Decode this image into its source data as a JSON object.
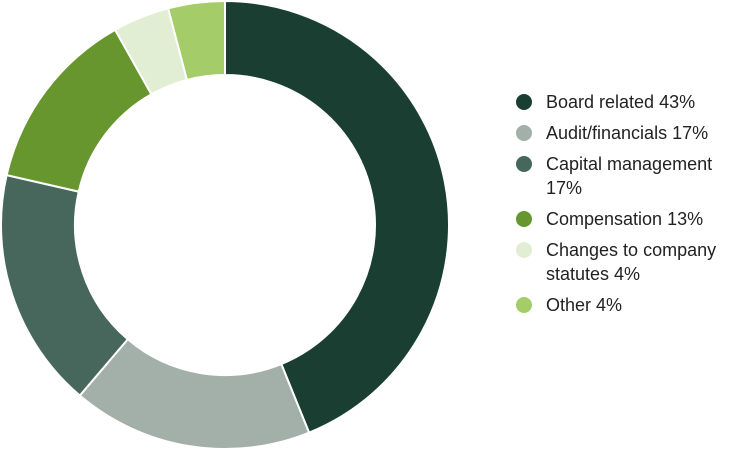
{
  "chart_data": {
    "type": "pie",
    "title": "",
    "donut": true,
    "start_angle_deg": 0,
    "direction": "clockwise",
    "categories": [
      "Board related",
      "Audit/financials",
      "Capital management",
      "Compensation",
      "Changes to company statutes",
      "Other"
    ],
    "values": [
      43,
      17,
      17,
      13,
      4,
      4
    ],
    "legend_labels": [
      "Board related 43%",
      "Audit/financials 17%",
      "Capital management 17%",
      "Compensation  13%",
      "Changes to company statutes 4%",
      "Other 4%"
    ],
    "colors": [
      "#1a3e32",
      "#a3b0aa",
      "#47665c",
      "#67962f",
      "#e2eed4",
      "#a4cc68"
    ],
    "legend_position": "right"
  }
}
